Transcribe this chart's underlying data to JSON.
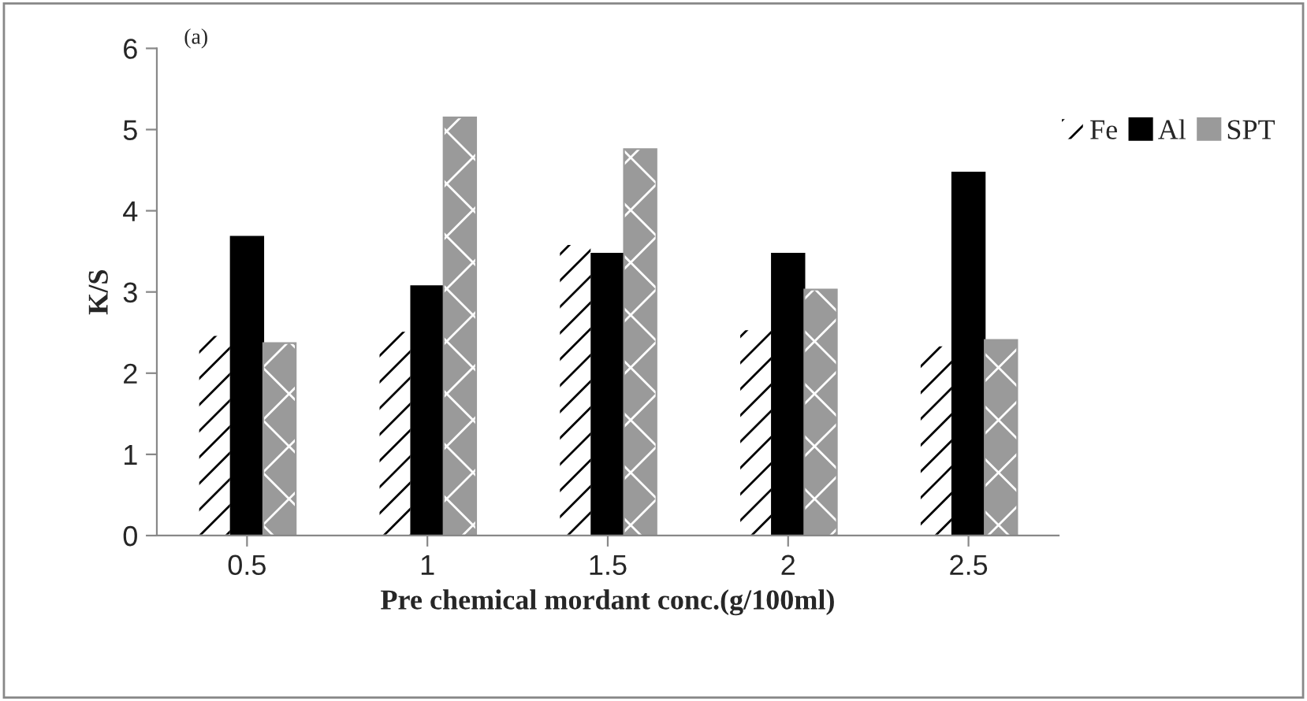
{
  "chart_data": {
    "type": "bar",
    "xlabel": "Pre chemical mordant conc.(g/100ml)",
    "ylabel": "K/S",
    "categories": [
      "0.5",
      "1",
      "1.5",
      "2",
      "2.5"
    ],
    "series": [
      {
        "name": "Fe",
        "color": "#ffffff",
        "values": [
          2.47,
          2.52,
          3.59,
          2.54,
          2.34
        ]
      },
      {
        "name": "Al",
        "color": "#000000",
        "values": [
          3.68,
          3.07,
          3.47,
          3.47,
          4.47
        ]
      },
      {
        "name": "SPT",
        "color": "#9a9a9a",
        "values": [
          2.37,
          5.15,
          4.76,
          3.03,
          2.41
        ]
      }
    ],
    "ylim": [
      0,
      6
    ],
    "yticks": [
      0,
      1,
      2,
      3,
      4,
      5,
      6
    ],
    "grid": false,
    "legend": "top right",
    "annotations": [
      "(a)"
    ]
  }
}
